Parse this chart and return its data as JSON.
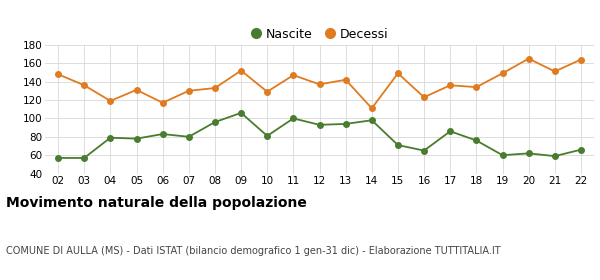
{
  "years": [
    "02",
    "03",
    "04",
    "05",
    "06",
    "07",
    "08",
    "09",
    "10",
    "11",
    "12",
    "13",
    "14",
    "15",
    "16",
    "17",
    "18",
    "19",
    "20",
    "21",
    "22"
  ],
  "nascite": [
    57,
    57,
    79,
    78,
    83,
    80,
    96,
    106,
    81,
    100,
    93,
    94,
    98,
    71,
    65,
    86,
    76,
    60,
    62,
    59,
    66
  ],
  "decessi": [
    148,
    136,
    119,
    131,
    117,
    130,
    133,
    152,
    129,
    147,
    137,
    142,
    111,
    149,
    123,
    136,
    134,
    149,
    165,
    151,
    164
  ],
  "nascite_color": "#4a7c2f",
  "decessi_color": "#e07b20",
  "background_color": "#ffffff",
  "grid_color": "#d8d8d8",
  "ylim": [
    40,
    180
  ],
  "yticks": [
    40,
    60,
    80,
    100,
    120,
    140,
    160,
    180
  ],
  "title": "Movimento naturale della popolazione",
  "subtitle": "COMUNE DI AULLA (MS) - Dati ISTAT (bilancio demografico 1 gen-31 dic) - Elaborazione TUTTITALIA.IT",
  "legend_nascite": "Nascite",
  "legend_decessi": "Decessi",
  "title_fontsize": 10,
  "subtitle_fontsize": 7,
  "tick_fontsize": 7.5,
  "marker_size": 4,
  "linewidth": 1.3
}
